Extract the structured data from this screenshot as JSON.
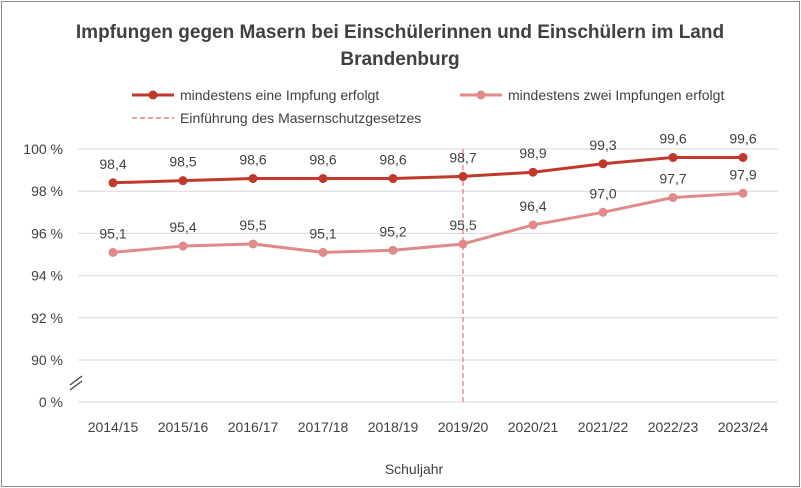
{
  "colors": {
    "series1": "#c0392b",
    "series2": "#e08a8a",
    "marker_line": "#ec7e7e",
    "text": "#404040",
    "grid": "#d9d9d9"
  },
  "chart_data": {
    "type": "line",
    "title_line1": "Impfungen gegen Masern bei Einschülerinnen und Einschülern im Land",
    "title_line2": "Brandenburg",
    "xlabel": "Schuljahr",
    "ylabel": "",
    "categories": [
      "2014/15",
      "2015/16",
      "2016/17",
      "2017/18",
      "2018/19",
      "2019/20",
      "2020/21",
      "2021/22",
      "2022/23",
      "2023/24"
    ],
    "series": [
      {
        "name": "mindestens eine Impfung erfolgt",
        "values": [
          98.4,
          98.5,
          98.6,
          98.6,
          98.6,
          98.7,
          98.9,
          99.3,
          99.6,
          99.6
        ],
        "labels": [
          "98,4",
          "98,5",
          "98,6",
          "98,6",
          "98,6",
          "98,7",
          "98,9",
          "99,3",
          "99,6",
          "99,6"
        ]
      },
      {
        "name": "mindestens zwei Impfungen erfolgt",
        "values": [
          95.1,
          95.4,
          95.5,
          95.1,
          95.2,
          95.5,
          96.4,
          97.0,
          97.7,
          97.9
        ],
        "labels": [
          "95,1",
          "95,4",
          "95,5",
          "95,1",
          "95,2",
          "95,5",
          "96,4",
          "97,0",
          "97,7",
          "97,9"
        ]
      }
    ],
    "reference_line": {
      "name": "Einführung des Masernschutzgesetzes",
      "category": "2019/20"
    },
    "ylim": [
      90,
      100
    ],
    "y_ticks": [
      100,
      98,
      96,
      94,
      92,
      90
    ],
    "y_tick_labels": [
      "100 %",
      "98 %",
      "96 %",
      "94 %",
      "92 %",
      "90 %"
    ],
    "y_zero_label": "0 %",
    "axis_break": true,
    "grid": true,
    "legend_position": "top"
  }
}
